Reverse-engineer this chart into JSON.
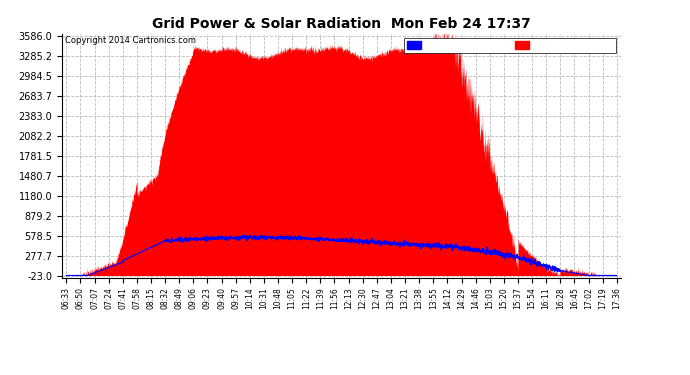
{
  "title": "Grid Power & Solar Radiation  Mon Feb 24 17:37",
  "copyright": "Copyright 2014 Cartronics.com",
  "yticks": [
    3586.0,
    3285.2,
    2984.5,
    2683.7,
    2383.0,
    2082.2,
    1781.5,
    1480.7,
    1180.0,
    879.2,
    578.5,
    277.7,
    -23.0
  ],
  "xtick_labels": [
    "06:33",
    "06:50",
    "07:07",
    "07:24",
    "07:41",
    "07:58",
    "08:15",
    "08:32",
    "08:49",
    "09:06",
    "09:23",
    "09:40",
    "09:57",
    "10:14",
    "10:31",
    "10:48",
    "11:05",
    "11:22",
    "11:39",
    "11:56",
    "12:13",
    "12:30",
    "12:47",
    "13:04",
    "13:21",
    "13:38",
    "13:55",
    "14:12",
    "14:29",
    "14:46",
    "15:03",
    "15:20",
    "15:37",
    "15:54",
    "16:11",
    "16:28",
    "16:45",
    "17:02",
    "17:19",
    "17:36"
  ],
  "bg_color": "#ffffff",
  "plot_bg_color": "#ffffff",
  "grid_color": "#bbbbbb",
  "radiation_color": "#0000ff",
  "solar_color": "#ff0000",
  "ymin": -23.0,
  "ymax": 3586.0
}
